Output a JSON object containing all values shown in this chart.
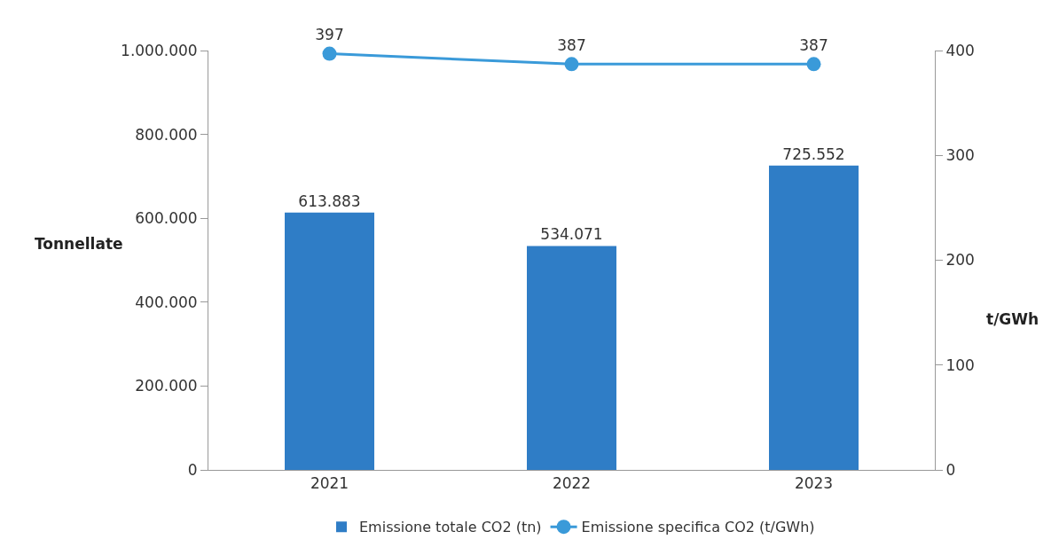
{
  "chart_data": {
    "type": "bar",
    "categories": [
      "2021",
      "2022",
      "2023"
    ],
    "ylabel": "Tonnellate",
    "y2label": "t/GWh",
    "series": [
      {
        "name": "Emissione totale CO2 (tn)",
        "color": "#2f7dc6",
        "values": [
          613883,
          534071,
          725552
        ],
        "value_labels": [
          "613.883",
          "534.071",
          "725.552"
        ]
      },
      {
        "name": "Emissione specifica CO2 (t/GWh)",
        "type": "line",
        "axis": "y2",
        "color": "#3a9ad9",
        "marker": "circle",
        "line_style": "solid",
        "values": [
          397,
          387,
          387
        ],
        "value_labels": [
          "397",
          "387",
          "387"
        ]
      }
    ],
    "ylim": [
      0,
      1000000
    ],
    "yticks": [
      {
        "value": 0,
        "label": "0"
      },
      {
        "value": 200000,
        "label": "200.000"
      },
      {
        "value": 400000,
        "label": "400.000"
      },
      {
        "value": 600000,
        "label": "600.000"
      },
      {
        "value": 800000,
        "label": "800.000"
      },
      {
        "value": 1000000,
        "label": "1.000.000"
      }
    ],
    "y2lim": [
      0,
      400
    ],
    "y2ticks": [
      0,
      100,
      200,
      300,
      400
    ],
    "grid": false,
    "legend": "bottom"
  }
}
